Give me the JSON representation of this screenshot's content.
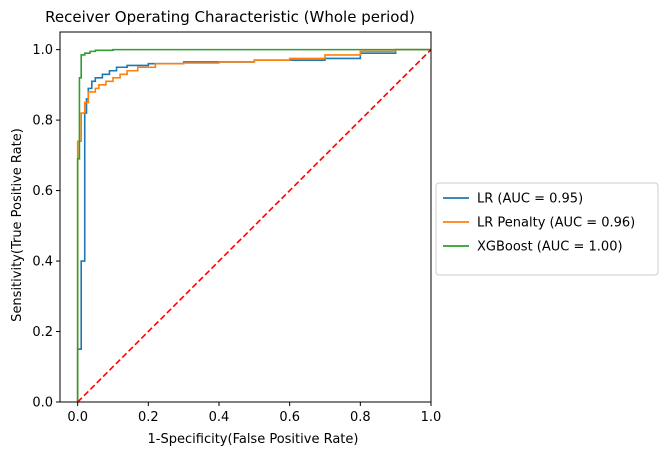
{
  "chart_data": {
    "type": "line",
    "title": "Receiver Operating Characteristic (Whole period)",
    "xlabel": "1-Specificity(False Positive Rate)",
    "ylabel": "Sensitivity(True Positive Rate)",
    "xlim": [
      -0.05,
      1.0
    ],
    "ylim": [
      0.0,
      1.05
    ],
    "xticks": [
      "0.0",
      "0.2",
      "0.4",
      "0.6",
      "0.8",
      "1.0"
    ],
    "xtick_values": [
      0.0,
      0.2,
      0.4,
      0.6,
      0.8,
      1.0
    ],
    "yticks": [
      "0.0",
      "0.2",
      "0.4",
      "0.6",
      "0.8",
      "1.0"
    ],
    "ytick_values": [
      0.0,
      0.2,
      0.4,
      0.6,
      0.8,
      1.0
    ],
    "grid": false,
    "legend_position": "center-left outside right",
    "series": [
      {
        "name": "LR (AUC = 0.95)",
        "color": "#1f77b4",
        "x": [
          0.0,
          0.0,
          0.01,
          0.01,
          0.02,
          0.02,
          0.025,
          0.025,
          0.03,
          0.03,
          0.04,
          0.04,
          0.05,
          0.05,
          0.07,
          0.07,
          0.09,
          0.09,
          0.11,
          0.11,
          0.14,
          0.14,
          0.2,
          0.2,
          0.3,
          0.3,
          0.5,
          0.5,
          0.7,
          0.7,
          0.8,
          0.8,
          0.9,
          0.9,
          1.0
        ],
        "y": [
          0.0,
          0.15,
          0.15,
          0.4,
          0.4,
          0.82,
          0.82,
          0.86,
          0.86,
          0.89,
          0.89,
          0.91,
          0.91,
          0.92,
          0.92,
          0.93,
          0.93,
          0.94,
          0.94,
          0.95,
          0.95,
          0.955,
          0.955,
          0.96,
          0.96,
          0.965,
          0.965,
          0.97,
          0.97,
          0.975,
          0.975,
          0.99,
          0.99,
          1.0,
          1.0
        ]
      },
      {
        "name": "LR Penalty (AUC = 0.96)",
        "color": "#ff7f0e",
        "x": [
          0.0,
          0.0,
          0.01,
          0.01,
          0.02,
          0.02,
          0.03,
          0.03,
          0.05,
          0.05,
          0.06,
          0.06,
          0.08,
          0.08,
          0.1,
          0.1,
          0.12,
          0.12,
          0.14,
          0.14,
          0.17,
          0.17,
          0.22,
          0.22,
          0.3,
          0.3,
          0.4,
          0.4,
          0.5,
          0.5,
          0.6,
          0.6,
          0.7,
          0.7,
          0.8,
          0.8,
          0.9,
          0.9,
          1.0
        ],
        "y": [
          0.0,
          0.74,
          0.74,
          0.82,
          0.82,
          0.85,
          0.85,
          0.88,
          0.88,
          0.89,
          0.89,
          0.9,
          0.9,
          0.91,
          0.91,
          0.92,
          0.92,
          0.93,
          0.93,
          0.94,
          0.94,
          0.95,
          0.95,
          0.96,
          0.96,
          0.962,
          0.962,
          0.965,
          0.965,
          0.97,
          0.97,
          0.975,
          0.975,
          0.985,
          0.985,
          0.995,
          0.995,
          1.0,
          1.0
        ]
      },
      {
        "name": "XGBoost (AUC = 1.00)",
        "color": "#2ca02c",
        "x": [
          0.0,
          0.0,
          0.005,
          0.005,
          0.01,
          0.01,
          0.02,
          0.02,
          0.035,
          0.035,
          0.05,
          0.05,
          0.1,
          0.1,
          1.0
        ],
        "y": [
          0.0,
          0.69,
          0.69,
          0.92,
          0.92,
          0.985,
          0.985,
          0.99,
          0.99,
          0.995,
          0.995,
          0.998,
          0.998,
          1.0,
          1.0
        ]
      }
    ],
    "reference_line": {
      "color": "#ff0000",
      "style": "dashed",
      "x": [
        0.0,
        1.0
      ],
      "y": [
        0.0,
        1.0
      ]
    }
  }
}
